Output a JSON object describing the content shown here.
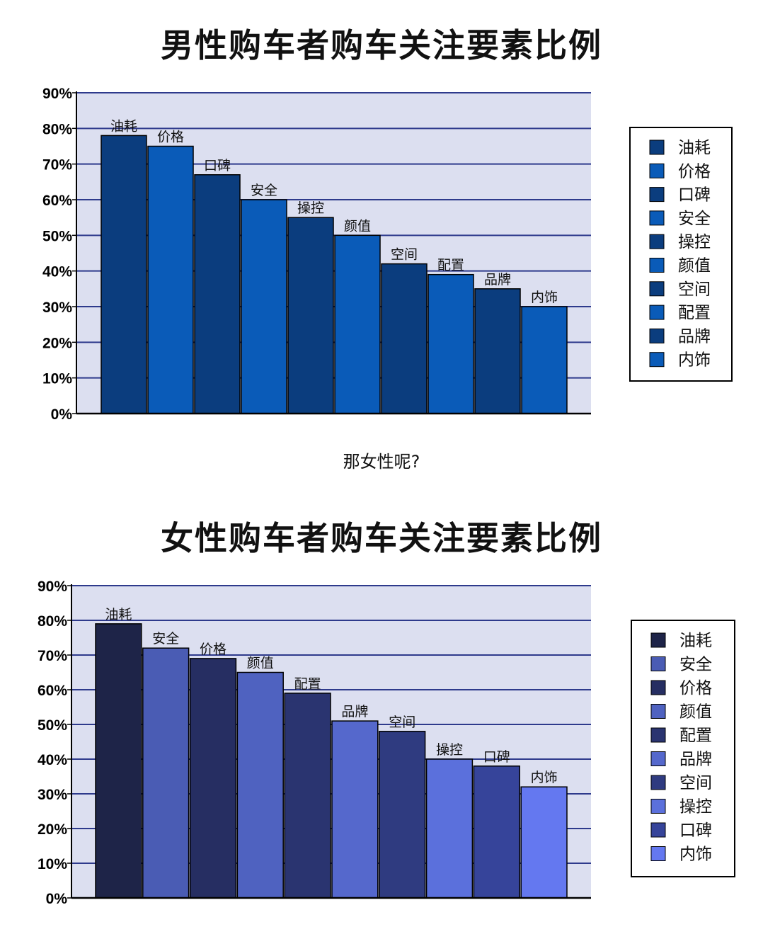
{
  "page": {
    "middle_text": "那女性呢?"
  },
  "chart_data": [
    {
      "type": "bar",
      "title": "男性购车者购车关注要素比例",
      "categories": [
        "油耗",
        "价格",
        "口碑",
        "安全",
        "操控",
        "颜值",
        "空间",
        "配置",
        "品牌",
        "内饰"
      ],
      "values": [
        78,
        75,
        67,
        60,
        55,
        50,
        42,
        39,
        35,
        30
      ],
      "value_unit": "%",
      "ylim": [
        0,
        90
      ],
      "ytick_step": 10,
      "yticks": [
        "0%",
        "10%",
        "20%",
        "30%",
        "40%",
        "50%",
        "60%",
        "70%",
        "80%",
        "90%"
      ],
      "xlabel": "",
      "ylabel": "",
      "grid": true,
      "legend": "right",
      "background_color": "#dcdff0",
      "grid_color": "#2e3a8c",
      "bar_colors": [
        "#0b3d7e",
        "#0a5bb8",
        "#0b3d7e",
        "#0a5bb8",
        "#0b3d7e",
        "#0a5bb8",
        "#0b3d7e",
        "#0a5bb8",
        "#0b3d7e",
        "#0a5bb8"
      ]
    },
    {
      "type": "bar",
      "title": "女性购车者购车关注要素比例",
      "categories": [
        "油耗",
        "安全",
        "价格",
        "颜值",
        "配置",
        "品牌",
        "空间",
        "操控",
        "口碑",
        "内饰"
      ],
      "values": [
        79,
        72,
        69,
        65,
        59,
        51,
        48,
        40,
        38,
        32
      ],
      "value_unit": "%",
      "ylim": [
        0,
        90
      ],
      "ytick_step": 10,
      "yticks": [
        "0%",
        "10%",
        "20%",
        "30%",
        "40%",
        "50%",
        "60%",
        "70%",
        "80%",
        "90%"
      ],
      "xlabel": "",
      "ylabel": "",
      "grid": true,
      "legend": "right",
      "background_color": "#dcdff0",
      "grid_color": "#2e3a8c",
      "bar_colors": [
        "#1e2448",
        "#4a5cb4",
        "#262e62",
        "#4f62c0",
        "#2a3470",
        "#5568cc",
        "#2f3b80",
        "#5b70dc",
        "#36449a",
        "#6478f0"
      ]
    }
  ]
}
